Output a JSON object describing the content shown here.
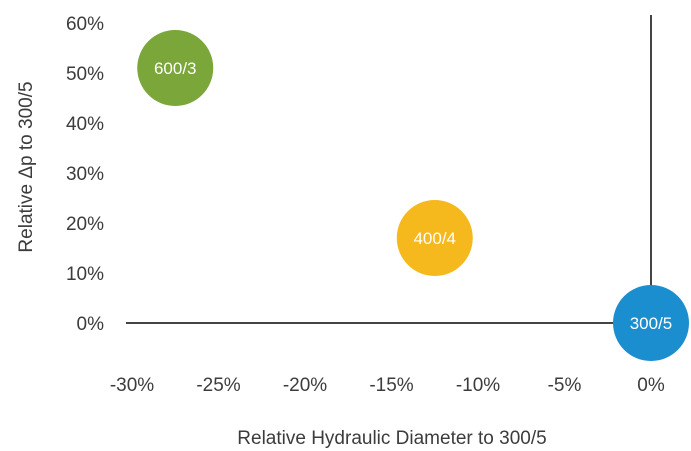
{
  "chart_data": {
    "type": "scatter",
    "title": "",
    "xlabel": "Relative Hydraulic Diameter to 300/5",
    "ylabel": "Relative Δp to 300/5",
    "xlim": [
      -30,
      0
    ],
    "ylim": [
      0,
      60
    ],
    "x_ticks": [
      "-30%",
      "-25%",
      "-20%",
      "-15%",
      "-10%",
      "-5%",
      "0%"
    ],
    "x_tick_values": [
      -30,
      -25,
      -20,
      -15,
      -10,
      -5,
      0
    ],
    "y_ticks": [
      "0%",
      "10%",
      "20%",
      "30%",
      "40%",
      "50%",
      "60%"
    ],
    "y_tick_values": [
      0,
      10,
      20,
      30,
      40,
      50,
      60
    ],
    "points": [
      {
        "label": "600/3",
        "x": -27.5,
        "y": 51,
        "color": "#7aa63a"
      },
      {
        "label": "400/4",
        "x": -12.5,
        "y": 17,
        "color": "#f6b91d"
      },
      {
        "label": "300/5",
        "x": 0,
        "y": 0,
        "color": "#1b8ed0"
      }
    ],
    "grid": false,
    "legend": "none"
  }
}
